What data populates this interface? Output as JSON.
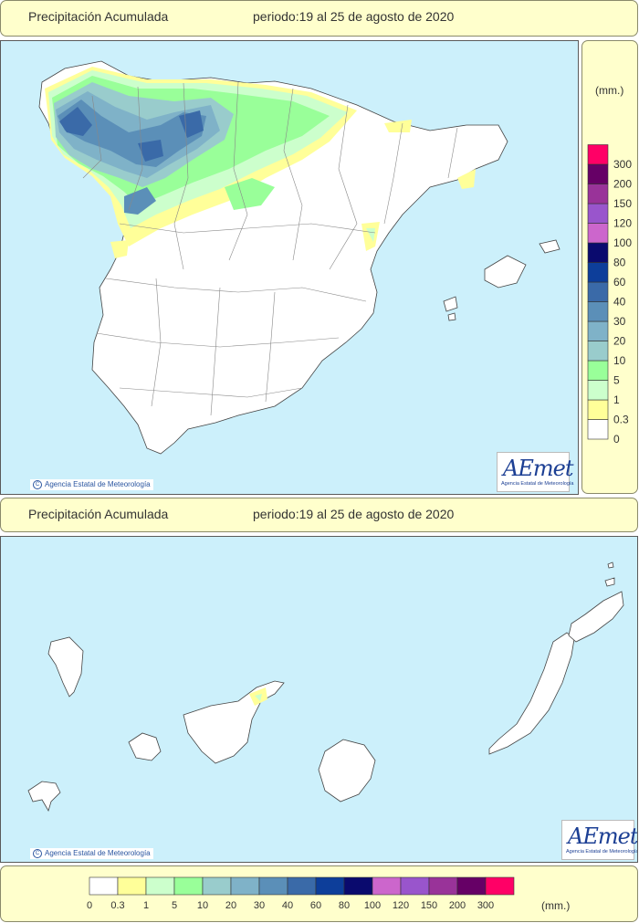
{
  "top_header": {
    "title": "Precipitación Acumulada",
    "period": "periodo:19 al 25 de agosto de 2020"
  },
  "bottom_header": {
    "title": "Precipitación Acumulada",
    "period": "periodo:19 al 25 de agosto de 2020"
  },
  "credit_text": "Agencia Estatal de Meteorología",
  "credit_symbol": "C",
  "logo": {
    "text": "AEmet",
    "subtitle": "Agencia Estatal de Meteorología"
  },
  "legend": {
    "unit": "(mm.)",
    "thresholds": [
      "0",
      "0.3",
      "1",
      "5",
      "10",
      "20",
      "30",
      "40",
      "60",
      "80",
      "100",
      "120",
      "150",
      "200",
      "300"
    ],
    "colors": [
      "#ffffff",
      "#ffff99",
      "#ccffcc",
      "#99ff99",
      "#99cccc",
      "#7fb2c8",
      "#5b8fb8",
      "#3a6aa8",
      "#0d3e9a",
      "#0a0a6e",
      "#cc66cc",
      "#9955cc",
      "#993399",
      "#660066",
      "#ff0066"
    ]
  },
  "map_colors": {
    "sea": "#ccf0fb",
    "land": "#ffffff",
    "border": "#888888"
  }
}
